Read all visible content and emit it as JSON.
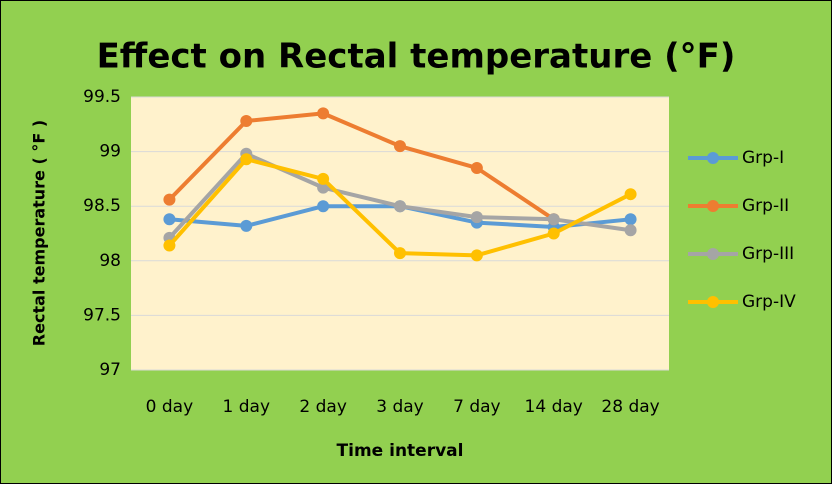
{
  "chart_data": {
    "type": "line",
    "title": "Effect on Rectal temperature (°F)",
    "x_label": "Time interval",
    "y_label": "Rectal temperature ( °F )",
    "categories": [
      "0 day",
      "1 day",
      "2 day",
      "3 day",
      "7 day",
      "14 day",
      "28 day"
    ],
    "series": [
      {
        "name": "Grp-I",
        "color": "#5b9bd5",
        "values": [
          98.38,
          98.32,
          98.5,
          98.5,
          98.35,
          98.31,
          98.38
        ]
      },
      {
        "name": "Grp-II",
        "color": "#ed7d31",
        "values": [
          98.56,
          99.28,
          99.35,
          99.05,
          98.85,
          98.38,
          null
        ]
      },
      {
        "name": "Grp-III",
        "color": "#a5a5a5",
        "values": [
          98.21,
          98.98,
          98.67,
          98.5,
          98.4,
          98.38,
          98.28
        ]
      },
      {
        "name": "Grp-IV",
        "color": "#ffc000",
        "values": [
          98.14,
          98.93,
          98.75,
          98.07,
          98.05,
          98.25,
          98.61
        ]
      }
    ],
    "ylim": [
      97,
      99.5
    ],
    "yticks": [
      97,
      97.5,
      98,
      98.5,
      99,
      99.5
    ],
    "grid": true,
    "legend": "right"
  }
}
